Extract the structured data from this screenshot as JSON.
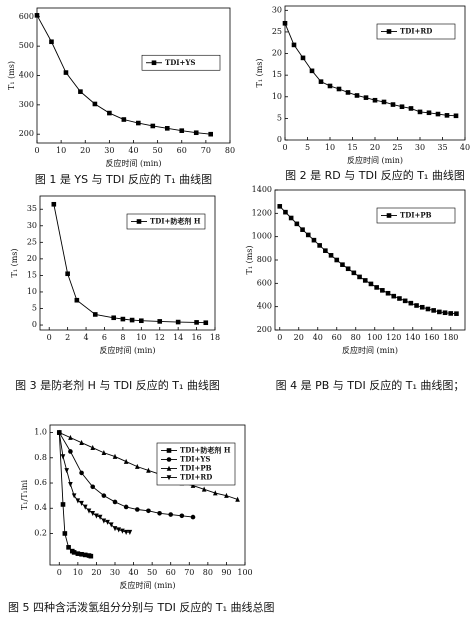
{
  "chart_data": [
    {
      "type": "line",
      "caption": "图 1 是 YS 与 TDI 反应的 T₁ 曲线图",
      "xlabel": "反应时间 (min)",
      "ylabel": "T₁ (ms)",
      "xlim": [
        0,
        80
      ],
      "xticks": [
        0,
        10,
        20,
        30,
        40,
        50,
        60,
        70,
        80
      ],
      "ylim": [
        170,
        630
      ],
      "yticks": [
        200,
        300,
        400,
        500,
        600
      ],
      "legend": "center right",
      "series": [
        {
          "name": "TDI+YS",
          "color": "#000000",
          "marker": "square",
          "x": [
            0,
            6,
            12,
            18,
            24,
            30,
            36,
            42,
            48,
            54,
            60,
            66,
            72
          ],
          "values": [
            605,
            515,
            410,
            345,
            303,
            272,
            250,
            238,
            228,
            220,
            212,
            205,
            200
          ]
        }
      ]
    },
    {
      "type": "line",
      "caption": "图 2 是 RD 与 TDI 反应的 T₁ 曲线图",
      "xlabel": "反应时间 (min)",
      "ylabel": "T₁ (ms)",
      "xlim": [
        0,
        40
      ],
      "xticks": [
        0,
        5,
        10,
        15,
        20,
        25,
        30,
        35,
        40
      ],
      "ylim": [
        0,
        31
      ],
      "yticks": [
        0,
        5,
        10,
        15,
        20,
        25,
        30
      ],
      "legend": "upper right",
      "series": [
        {
          "name": "TDI+RD",
          "color": "#000000",
          "marker": "square",
          "x": [
            0,
            2,
            4,
            6,
            8,
            10,
            12,
            14,
            16,
            18,
            20,
            22,
            24,
            26,
            28,
            30,
            32,
            34,
            36,
            38
          ],
          "values": [
            27,
            22,
            19,
            16,
            13.5,
            12.5,
            11.8,
            11,
            10.3,
            9.8,
            9.2,
            8.8,
            8.2,
            7.7,
            7.3,
            6.5,
            6.3,
            6,
            5.7,
            5.6
          ]
        }
      ]
    },
    {
      "type": "line",
      "caption": "图 3 是防老剂 H 与 TDI 反应的 T₁ 曲线图",
      "xlabel": "反应时间 (min)",
      "ylabel": "T₁ (ms)",
      "xlim": [
        -1,
        18
      ],
      "xticks": [
        0,
        2,
        4,
        6,
        8,
        10,
        12,
        14,
        16,
        18
      ],
      "ylim": [
        -1.5,
        39
      ],
      "yticks": [
        0,
        5,
        10,
        15,
        20,
        25,
        30,
        35
      ],
      "legend": "upper right",
      "series": [
        {
          "name": "TDI+防老剂 H",
          "color": "#000000",
          "marker": "square",
          "x": [
            0.5,
            2,
            3,
            5,
            7,
            8,
            9,
            10,
            12,
            14,
            16,
            17
          ],
          "values": [
            36.5,
            15.5,
            7.5,
            3.2,
            2.2,
            1.8,
            1.5,
            1.3,
            1.1,
            0.9,
            0.8,
            0.7
          ]
        }
      ]
    },
    {
      "type": "line",
      "caption": "图 4 是 PB 与 TDI 反应的 T₁ 曲线图；",
      "xlabel": "反应时间 (min)",
      "ylabel": "T₁ (ms)",
      "xlim": [
        -5,
        195
      ],
      "xticks": [
        0,
        20,
        40,
        60,
        80,
        100,
        120,
        140,
        160,
        180
      ],
      "ylim": [
        200,
        1400
      ],
      "yticks": [
        200,
        400,
        600,
        800,
        1000,
        1200,
        1400
      ],
      "legend": "upper right",
      "series": [
        {
          "name": "TDI+PB",
          "color": "#000000",
          "marker": "square",
          "x": [
            0,
            6,
            12,
            18,
            24,
            30,
            36,
            42,
            48,
            54,
            60,
            66,
            72,
            78,
            84,
            90,
            96,
            102,
            108,
            114,
            120,
            126,
            132,
            138,
            144,
            150,
            156,
            162,
            168,
            174,
            180,
            186
          ],
          "values": [
            1260,
            1210,
            1160,
            1110,
            1060,
            1015,
            970,
            925,
            880,
            840,
            800,
            760,
            725,
            690,
            655,
            625,
            595,
            565,
            540,
            515,
            490,
            470,
            450,
            430,
            410,
            395,
            380,
            368,
            355,
            348,
            342,
            340
          ]
        }
      ]
    },
    {
      "type": "line",
      "caption": "图 5 四种含活泼氢组分分别与 TDI 反应的 T₁ 曲线总图",
      "xlabel": "反应时间 (min)",
      "ylabel": "T₁/T₁ini",
      "xlim": [
        -5,
        100
      ],
      "xticks": [
        0,
        10,
        20,
        30,
        40,
        50,
        60,
        70,
        80,
        90,
        100
      ],
      "ylim": [
        -0.05,
        1.06
      ],
      "yticks": [
        0.2,
        0.4,
        0.6,
        0.8,
        {
          "value": 1,
          "label": "1.0"
        }
      ],
      "legend": "upper right",
      "series": [
        {
          "name": "TDI+防老剂 H",
          "color": "#000000",
          "marker": "square",
          "x": [
            0,
            2,
            3,
            5,
            7,
            8,
            10,
            12,
            14,
            16,
            17
          ],
          "values": [
            1,
            0.43,
            0.2,
            0.09,
            0.06,
            0.05,
            0.04,
            0.035,
            0.03,
            0.025,
            0.02
          ]
        },
        {
          "name": "TDI+YS",
          "color": "#000000",
          "marker": "circle",
          "x": [
            0,
            6,
            12,
            18,
            24,
            30,
            36,
            42,
            48,
            54,
            60,
            66,
            72
          ],
          "values": [
            1,
            0.85,
            0.68,
            0.57,
            0.5,
            0.45,
            0.41,
            0.39,
            0.38,
            0.36,
            0.35,
            0.34,
            0.33
          ]
        },
        {
          "name": "TDI+PB",
          "color": "#000000",
          "marker": "triangle-up",
          "x": [
            0,
            6,
            12,
            18,
            24,
            30,
            36,
            42,
            48,
            54,
            60,
            66,
            72,
            78,
            84,
            90,
            96
          ],
          "values": [
            1,
            0.96,
            0.92,
            0.88,
            0.84,
            0.81,
            0.77,
            0.73,
            0.7,
            0.67,
            0.63,
            0.6,
            0.58,
            0.55,
            0.52,
            0.5,
            0.47
          ]
        },
        {
          "name": "TDI+RD",
          "color": "#000000",
          "marker": "triangle-down",
          "x": [
            0,
            2,
            4,
            6,
            8,
            10,
            12,
            14,
            16,
            18,
            20,
            22,
            24,
            26,
            28,
            30,
            32,
            34,
            36,
            38
          ],
          "values": [
            1,
            0.81,
            0.7,
            0.59,
            0.5,
            0.46,
            0.44,
            0.41,
            0.38,
            0.36,
            0.34,
            0.33,
            0.3,
            0.29,
            0.27,
            0.24,
            0.23,
            0.22,
            0.21,
            0.21
          ]
        }
      ]
    }
  ]
}
